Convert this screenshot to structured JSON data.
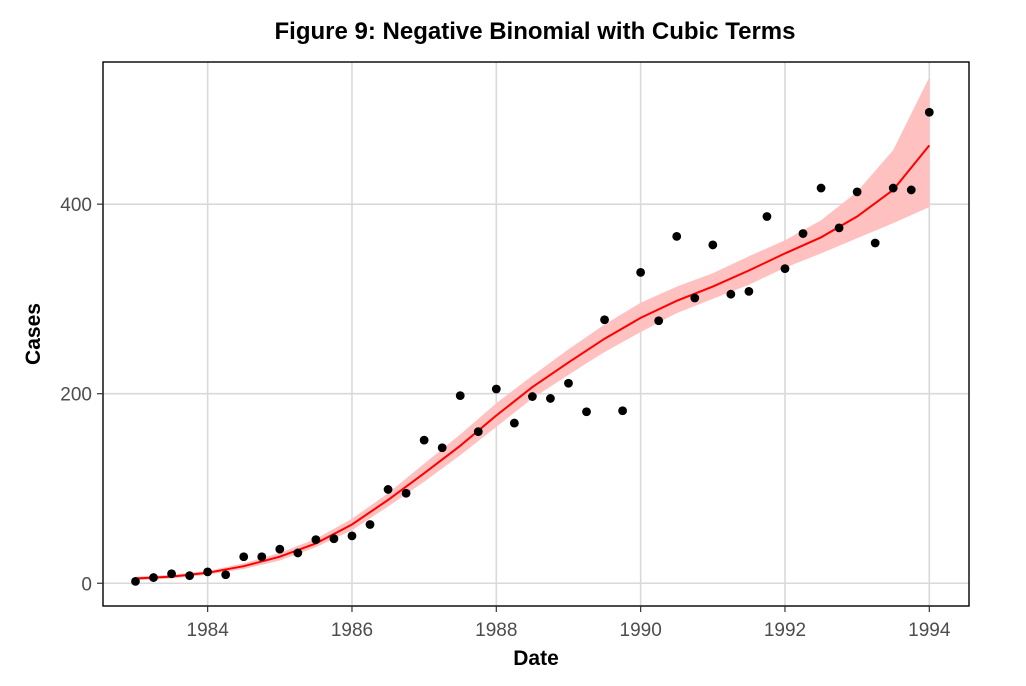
{
  "chart_data": {
    "type": "scatter",
    "title": "Figure 9: Negative Binomial with Cubic Terms",
    "xlabel": "Date",
    "ylabel": "Cases",
    "xlim": [
      1982.55,
      1994.55
    ],
    "ylim": [
      -24,
      550
    ],
    "xticks": [
      1984,
      1986,
      1988,
      1990,
      1992,
      1994
    ],
    "yticks": [
      0,
      200,
      400
    ],
    "grid": true,
    "points": {
      "color": "#000000",
      "x": [
        1983.0,
        1983.25,
        1983.5,
        1983.75,
        1984.0,
        1984.25,
        1984.5,
        1984.75,
        1985.0,
        1985.25,
        1985.5,
        1985.75,
        1986.0,
        1986.25,
        1986.5,
        1986.75,
        1987.0,
        1987.25,
        1987.5,
        1987.75,
        1988.0,
        1988.25,
        1988.5,
        1988.75,
        1989.0,
        1989.25,
        1989.5,
        1989.75,
        1990.0,
        1990.25,
        1990.5,
        1990.75,
        1991.0,
        1991.25,
        1991.5,
        1991.75,
        1992.0,
        1992.25,
        1992.5,
        1992.75,
        1993.0,
        1993.25,
        1993.5,
        1993.75,
        1994.0
      ],
      "y": [
        2,
        6,
        10,
        8,
        12,
        9,
        28,
        28,
        36,
        32,
        46,
        47,
        50,
        62,
        99,
        95,
        151,
        143,
        198,
        160,
        205,
        169,
        197,
        195,
        211,
        181,
        278,
        182,
        328,
        277,
        366,
        301,
        357,
        305,
        308,
        387,
        332,
        369,
        417,
        375,
        413,
        359,
        417,
        415,
        497
      ]
    },
    "fit": {
      "color": "#ff0000",
      "band_color": "#ffc0c0",
      "x": [
        1983.0,
        1983.5,
        1984.0,
        1984.5,
        1985.0,
        1985.5,
        1986.0,
        1986.5,
        1987.0,
        1987.5,
        1988.0,
        1988.5,
        1989.0,
        1989.5,
        1990.0,
        1990.5,
        1991.0,
        1991.5,
        1992.0,
        1992.5,
        1993.0,
        1993.5,
        1994.0
      ],
      "y": [
        5,
        7,
        11,
        18,
        28,
        42,
        62,
        88,
        116,
        145,
        177,
        207,
        233,
        258,
        280,
        298,
        313,
        330,
        348,
        365,
        387,
        415,
        462
      ],
      "lower": [
        3,
        5,
        9,
        15,
        24,
        38,
        56,
        81,
        107,
        135,
        165,
        195,
        220,
        244,
        265,
        285,
        300,
        315,
        333,
        348,
        364,
        380,
        397
      ],
      "upper": [
        7,
        9,
        13,
        21,
        32,
        47,
        68,
        95,
        126,
        157,
        190,
        219,
        247,
        273,
        296,
        313,
        327,
        345,
        362,
        383,
        413,
        457,
        534
      ]
    }
  }
}
